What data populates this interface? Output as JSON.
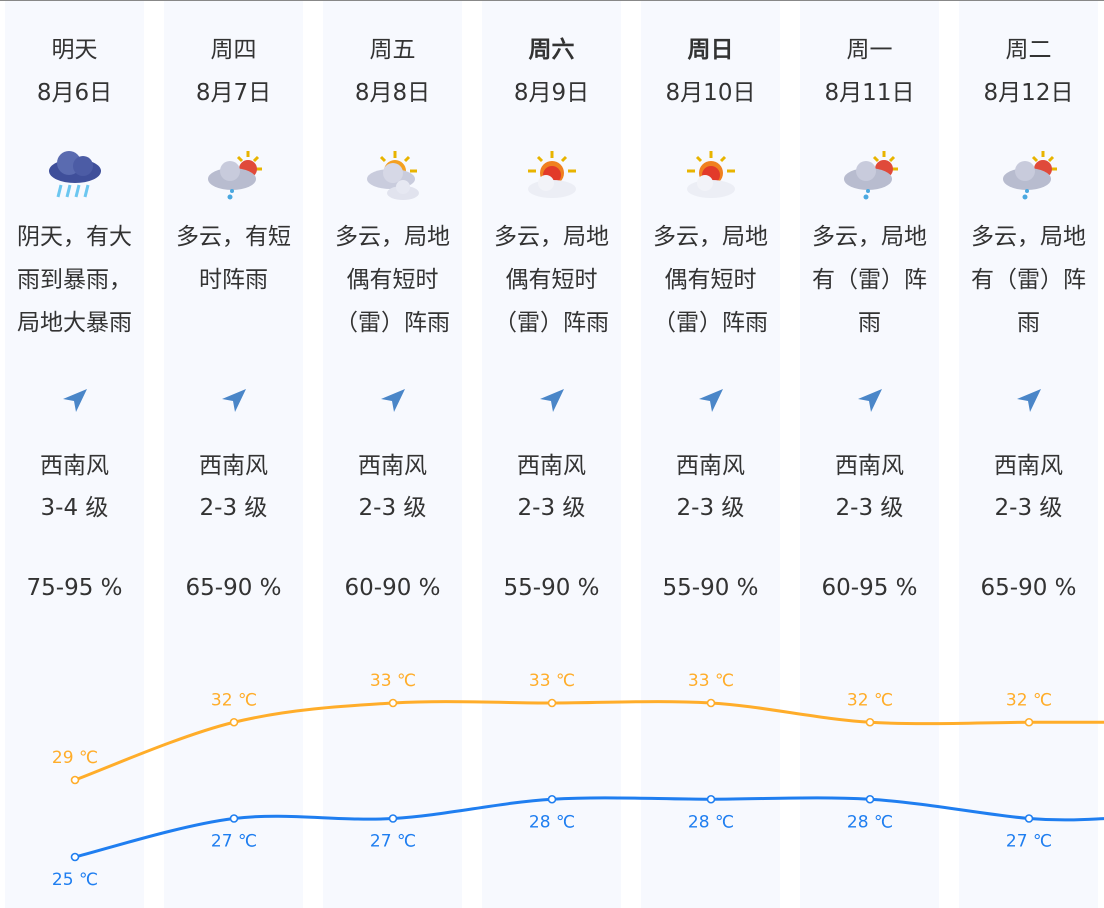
{
  "days": [
    {
      "weekday": "明天",
      "bold": false,
      "date": "8月6日",
      "icon": "heavy-rain-icon",
      "desc": [
        "阴天，有大",
        "雨到暴雨，",
        "局地大暴雨"
      ],
      "wind_dir": "西南风",
      "wind_level": "3-4 级",
      "humidity": "75-95 %"
    },
    {
      "weekday": "周四",
      "bold": false,
      "date": "8月7日",
      "icon": "partly-cloudy-shower-icon",
      "desc": [
        "多云，有短",
        "时阵雨"
      ],
      "wind_dir": "西南风",
      "wind_level": "2-3 级",
      "humidity": "65-90 %"
    },
    {
      "weekday": "周五",
      "bold": false,
      "date": "8月8日",
      "icon": "partly-cloudy-icon",
      "desc": [
        "多云，局地",
        "偶有短时",
        "（雷）阵雨"
      ],
      "wind_dir": "西南风",
      "wind_level": "2-3 级",
      "humidity": "60-90 %"
    },
    {
      "weekday": "周六",
      "bold": true,
      "date": "8月9日",
      "icon": "sun-cloud-icon",
      "desc": [
        "多云，局地",
        "偶有短时",
        "（雷）阵雨"
      ],
      "wind_dir": "西南风",
      "wind_level": "2-3 级",
      "humidity": "55-90 %"
    },
    {
      "weekday": "周日",
      "bold": true,
      "date": "8月10日",
      "icon": "sun-cloud-icon",
      "desc": [
        "多云，局地",
        "偶有短时",
        "（雷）阵雨"
      ],
      "wind_dir": "西南风",
      "wind_level": "2-3 级",
      "humidity": "55-90 %"
    },
    {
      "weekday": "周一",
      "bold": false,
      "date": "8月11日",
      "icon": "partly-cloudy-shower-icon",
      "desc": [
        "多云，局地",
        "有（雷）阵",
        "雨"
      ],
      "wind_dir": "西南风",
      "wind_level": "2-3 级",
      "humidity": "60-95 %"
    },
    {
      "weekday": "周二",
      "bold": false,
      "date": "8月12日",
      "icon": "partly-cloudy-shower-icon",
      "desc": [
        "多云，局地",
        "有（雷）阵",
        "雨"
      ],
      "wind_dir": "西南风",
      "wind_level": "2-3 级",
      "humidity": "65-90 %"
    }
  ],
  "temperature": {
    "unit": "℃",
    "high": [
      29,
      32,
      33,
      33,
      33,
      32,
      32
    ],
    "low": [
      25,
      27,
      27,
      28,
      28,
      28,
      27
    ],
    "high_labels": [
      "29 ℃",
      "32 ℃",
      "33 ℃",
      "33 ℃",
      "33 ℃",
      "32 ℃",
      "32 ℃"
    ],
    "low_labels": [
      "25 ℃",
      "27 ℃",
      "27 ℃",
      "28 ℃",
      "28 ℃",
      "28 ℃",
      "27 ℃"
    ],
    "high_color": "#ffad2a",
    "low_color": "#1f7ef0"
  }
}
